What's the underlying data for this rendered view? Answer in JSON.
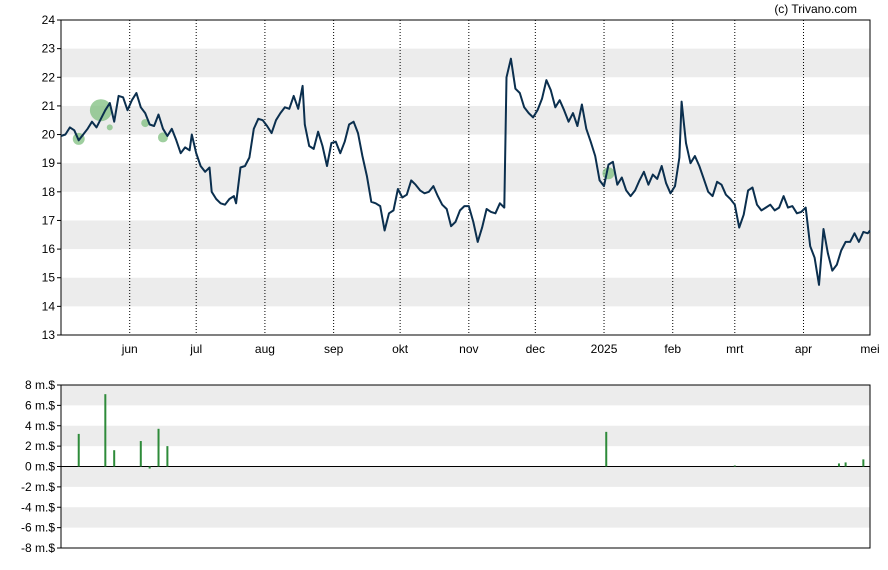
{
  "credit": "(c) Trivano.com",
  "colors": {
    "price_line": "#0b2f4e",
    "volume_bar": "#2e8b3a",
    "bubble": "#7fbf7f",
    "band": "#ececec",
    "gridline": "#000000"
  },
  "chart_data": [
    {
      "type": "line",
      "title": "",
      "xlabel": "",
      "ylabel": "",
      "ylim": [
        13,
        24
      ],
      "yticks": [
        "13",
        "14",
        "15",
        "16",
        "17",
        "18",
        "19",
        "20",
        "21",
        "22",
        "23",
        "24"
      ],
      "x_range": [
        "2024-05-01",
        "2025-05-01"
      ],
      "xticks": [
        {
          "label": "jun",
          "date": "2024-06-01"
        },
        {
          "label": "jul",
          "date": "2024-07-01"
        },
        {
          "label": "aug",
          "date": "2024-08-01"
        },
        {
          "label": "sep",
          "date": "2024-09-01"
        },
        {
          "label": "okt",
          "date": "2024-10-01"
        },
        {
          "label": "nov",
          "date": "2024-11-01"
        },
        {
          "label": "dec",
          "date": "2024-12-01"
        },
        {
          "label": "2025",
          "date": "2025-01-01"
        },
        {
          "label": "feb",
          "date": "2025-02-01"
        },
        {
          "label": "mrt",
          "date": "2025-03-01"
        },
        {
          "label": "apr",
          "date": "2025-04-01"
        },
        {
          "label": "mei",
          "date": "2025-05-01"
        }
      ],
      "grid": "dotted vertical at month ticks, alternating horizontal bands",
      "series": [
        {
          "name": "",
          "points": [
            [
              "2024-05-01",
              19.95
            ],
            [
              "2024-05-03",
              20.0
            ],
            [
              "2024-05-05",
              20.25
            ],
            [
              "2024-05-07",
              20.15
            ],
            [
              "2024-05-09",
              19.8
            ],
            [
              "2024-05-11",
              20.0
            ],
            [
              "2024-05-13",
              20.2
            ],
            [
              "2024-05-15",
              20.45
            ],
            [
              "2024-05-17",
              20.25
            ],
            [
              "2024-05-19",
              20.55
            ],
            [
              "2024-05-21",
              20.85
            ],
            [
              "2024-05-23",
              21.1
            ],
            [
              "2024-05-25",
              20.45
            ],
            [
              "2024-05-27",
              21.35
            ],
            [
              "2024-05-29",
              21.3
            ],
            [
              "2024-05-31",
              20.85
            ],
            [
              "2024-06-02",
              21.2
            ],
            [
              "2024-06-04",
              21.45
            ],
            [
              "2024-06-06",
              20.95
            ],
            [
              "2024-06-08",
              20.75
            ],
            [
              "2024-06-10",
              20.35
            ],
            [
              "2024-06-12",
              20.3
            ],
            [
              "2024-06-14",
              20.7
            ],
            [
              "2024-06-16",
              20.2
            ],
            [
              "2024-06-18",
              19.95
            ],
            [
              "2024-06-20",
              20.2
            ],
            [
              "2024-06-22",
              19.8
            ],
            [
              "2024-06-24",
              19.35
            ],
            [
              "2024-06-26",
              19.55
            ],
            [
              "2024-06-28",
              19.45
            ],
            [
              "2024-06-29",
              20.0
            ],
            [
              "2024-07-01",
              19.35
            ],
            [
              "2024-07-03",
              18.9
            ],
            [
              "2024-07-05",
              18.7
            ],
            [
              "2024-07-07",
              18.85
            ],
            [
              "2024-07-08",
              18.0
            ],
            [
              "2024-07-10",
              17.75
            ],
            [
              "2024-07-12",
              17.6
            ],
            [
              "2024-07-14",
              17.55
            ],
            [
              "2024-07-16",
              17.75
            ],
            [
              "2024-07-18",
              17.85
            ],
            [
              "2024-07-19",
              17.6
            ],
            [
              "2024-07-21",
              18.85
            ],
            [
              "2024-07-23",
              18.9
            ],
            [
              "2024-07-25",
              19.2
            ],
            [
              "2024-07-27",
              20.2
            ],
            [
              "2024-07-29",
              20.55
            ],
            [
              "2024-07-31",
              20.5
            ],
            [
              "2024-08-02",
              20.3
            ],
            [
              "2024-08-04",
              20.05
            ],
            [
              "2024-08-06",
              20.5
            ],
            [
              "2024-08-08",
              20.75
            ],
            [
              "2024-08-10",
              20.95
            ],
            [
              "2024-08-12",
              20.9
            ],
            [
              "2024-08-14",
              21.35
            ],
            [
              "2024-08-16",
              20.9
            ],
            [
              "2024-08-18",
              21.7
            ],
            [
              "2024-08-19",
              20.35
            ],
            [
              "2024-08-21",
              19.6
            ],
            [
              "2024-08-23",
              19.5
            ],
            [
              "2024-08-25",
              20.1
            ],
            [
              "2024-08-27",
              19.6
            ],
            [
              "2024-08-29",
              18.9
            ],
            [
              "2024-08-31",
              19.7
            ],
            [
              "2024-09-02",
              19.75
            ],
            [
              "2024-09-04",
              19.35
            ],
            [
              "2024-09-06",
              19.75
            ],
            [
              "2024-09-08",
              20.35
            ],
            [
              "2024-09-10",
              20.45
            ],
            [
              "2024-09-12",
              20.05
            ],
            [
              "2024-09-14",
              19.25
            ],
            [
              "2024-09-16",
              18.55
            ],
            [
              "2024-09-18",
              17.65
            ],
            [
              "2024-09-20",
              17.6
            ],
            [
              "2024-09-22",
              17.5
            ],
            [
              "2024-09-24",
              16.65
            ],
            [
              "2024-09-26",
              17.25
            ],
            [
              "2024-09-28",
              17.35
            ],
            [
              "2024-09-30",
              18.1
            ],
            [
              "2024-10-02",
              17.8
            ],
            [
              "2024-10-04",
              17.9
            ],
            [
              "2024-10-06",
              18.4
            ],
            [
              "2024-10-08",
              18.25
            ],
            [
              "2024-10-10",
              18.05
            ],
            [
              "2024-10-12",
              17.95
            ],
            [
              "2024-10-14",
              18.0
            ],
            [
              "2024-10-16",
              18.2
            ],
            [
              "2024-10-18",
              17.85
            ],
            [
              "2024-10-20",
              17.55
            ],
            [
              "2024-10-22",
              17.4
            ],
            [
              "2024-10-24",
              16.8
            ],
            [
              "2024-10-26",
              16.95
            ],
            [
              "2024-10-28",
              17.35
            ],
            [
              "2024-10-30",
              17.5
            ],
            [
              "2024-11-01",
              17.5
            ],
            [
              "2024-11-03",
              16.95
            ],
            [
              "2024-11-05",
              16.25
            ],
            [
              "2024-11-07",
              16.75
            ],
            [
              "2024-11-09",
              17.4
            ],
            [
              "2024-11-11",
              17.3
            ],
            [
              "2024-11-13",
              17.25
            ],
            [
              "2024-11-15",
              17.6
            ],
            [
              "2024-11-17",
              17.45
            ],
            [
              "2024-11-18",
              22.0
            ],
            [
              "2024-11-20",
              22.65
            ],
            [
              "2024-11-22",
              21.6
            ],
            [
              "2024-11-24",
              21.45
            ],
            [
              "2024-11-26",
              20.95
            ],
            [
              "2024-11-28",
              20.75
            ],
            [
              "2024-11-30",
              20.6
            ],
            [
              "2024-12-02",
              20.85
            ],
            [
              "2024-12-04",
              21.25
            ],
            [
              "2024-12-06",
              21.9
            ],
            [
              "2024-12-08",
              21.55
            ],
            [
              "2024-12-10",
              20.95
            ],
            [
              "2024-12-12",
              21.2
            ],
            [
              "2024-12-14",
              20.85
            ],
            [
              "2024-12-16",
              20.45
            ],
            [
              "2024-12-18",
              20.75
            ],
            [
              "2024-12-20",
              20.3
            ],
            [
              "2024-12-22",
              21.05
            ],
            [
              "2024-12-24",
              20.2
            ],
            [
              "2024-12-26",
              19.75
            ],
            [
              "2024-12-28",
              19.25
            ],
            [
              "2024-12-30",
              18.4
            ],
            [
              "2025-01-01",
              18.2
            ],
            [
              "2025-01-03",
              18.95
            ],
            [
              "2025-01-05",
              19.05
            ],
            [
              "2025-01-07",
              18.25
            ],
            [
              "2025-01-09",
              18.5
            ],
            [
              "2025-01-11",
              18.05
            ],
            [
              "2025-01-13",
              17.85
            ],
            [
              "2025-01-15",
              18.05
            ],
            [
              "2025-01-17",
              18.4
            ],
            [
              "2025-01-19",
              18.7
            ],
            [
              "2025-01-21",
              18.25
            ],
            [
              "2025-01-23",
              18.6
            ],
            [
              "2025-01-25",
              18.45
            ],
            [
              "2025-01-27",
              18.9
            ],
            [
              "2025-01-29",
              18.3
            ],
            [
              "2025-01-31",
              17.95
            ],
            [
              "2025-02-02",
              18.2
            ],
            [
              "2025-02-04",
              19.2
            ],
            [
              "2025-02-05",
              21.15
            ],
            [
              "2025-02-07",
              19.7
            ],
            [
              "2025-02-09",
              19.0
            ],
            [
              "2025-02-11",
              19.25
            ],
            [
              "2025-02-13",
              18.9
            ],
            [
              "2025-02-15",
              18.45
            ],
            [
              "2025-02-17",
              18.0
            ],
            [
              "2025-02-19",
              17.85
            ],
            [
              "2025-02-21",
              18.35
            ],
            [
              "2025-02-23",
              18.25
            ],
            [
              "2025-02-25",
              17.9
            ],
            [
              "2025-02-27",
              17.75
            ],
            [
              "2025-03-01",
              17.55
            ],
            [
              "2025-03-03",
              16.75
            ],
            [
              "2025-03-05",
              17.2
            ],
            [
              "2025-03-07",
              18.05
            ],
            [
              "2025-03-09",
              18.15
            ],
            [
              "2025-03-11",
              17.55
            ],
            [
              "2025-03-13",
              17.35
            ],
            [
              "2025-03-15",
              17.45
            ],
            [
              "2025-03-17",
              17.55
            ],
            [
              "2025-03-19",
              17.35
            ],
            [
              "2025-03-21",
              17.45
            ],
            [
              "2025-03-23",
              17.85
            ],
            [
              "2025-03-25",
              17.45
            ],
            [
              "2025-03-27",
              17.5
            ],
            [
              "2025-03-29",
              17.25
            ],
            [
              "2025-03-31",
              17.3
            ],
            [
              "2025-04-02",
              17.45
            ],
            [
              "2025-04-04",
              16.1
            ],
            [
              "2025-04-06",
              15.7
            ],
            [
              "2025-04-08",
              14.75
            ],
            [
              "2025-04-10",
              16.7
            ],
            [
              "2025-04-12",
              15.85
            ],
            [
              "2025-04-14",
              15.25
            ],
            [
              "2025-04-16",
              15.45
            ],
            [
              "2025-04-18",
              15.95
            ],
            [
              "2025-04-20",
              16.25
            ],
            [
              "2025-04-22",
              16.25
            ],
            [
              "2025-04-24",
              16.55
            ],
            [
              "2025-04-26",
              16.25
            ],
            [
              "2025-04-28",
              16.6
            ],
            [
              "2025-04-30",
              16.55
            ],
            [
              "2025-05-01",
              16.65
            ]
          ]
        }
      ],
      "bubbles": [
        {
          "date": "2024-05-09",
          "value": 19.85,
          "size": 6
        },
        {
          "date": "2024-05-19",
          "value": 20.85,
          "size": 11
        },
        {
          "date": "2024-05-23",
          "value": 20.25,
          "size": 3
        },
        {
          "date": "2024-06-08",
          "value": 20.4,
          "size": 4
        },
        {
          "date": "2024-06-16",
          "value": 19.9,
          "size": 5
        },
        {
          "date": "2025-01-03",
          "value": 18.65,
          "size": 6
        }
      ]
    },
    {
      "type": "bar",
      "title": "",
      "xlabel": "",
      "ylabel": "",
      "ylim": [
        -8,
        8
      ],
      "yticks": [
        "-8 m.$",
        "-6 m.$",
        "-4 m.$",
        "-2 m.$",
        "0 m.$",
        "2 m.$",
        "4 m.$",
        "6 m.$",
        "8 m.$"
      ],
      "series": [
        {
          "name": "",
          "points": [
            [
              "2024-05-09",
              3.2
            ],
            [
              "2024-05-21",
              7.1
            ],
            [
              "2024-05-25",
              1.6
            ],
            [
              "2024-06-06",
              2.5
            ],
            [
              "2024-06-10",
              -0.2
            ],
            [
              "2024-06-14",
              3.7
            ],
            [
              "2024-06-18",
              2.0
            ],
            [
              "2025-01-02",
              3.4
            ],
            [
              "2025-03-01",
              0.1
            ],
            [
              "2025-04-17",
              0.3
            ],
            [
              "2025-04-20",
              0.4
            ],
            [
              "2025-04-28",
              0.7
            ]
          ]
        }
      ]
    }
  ]
}
